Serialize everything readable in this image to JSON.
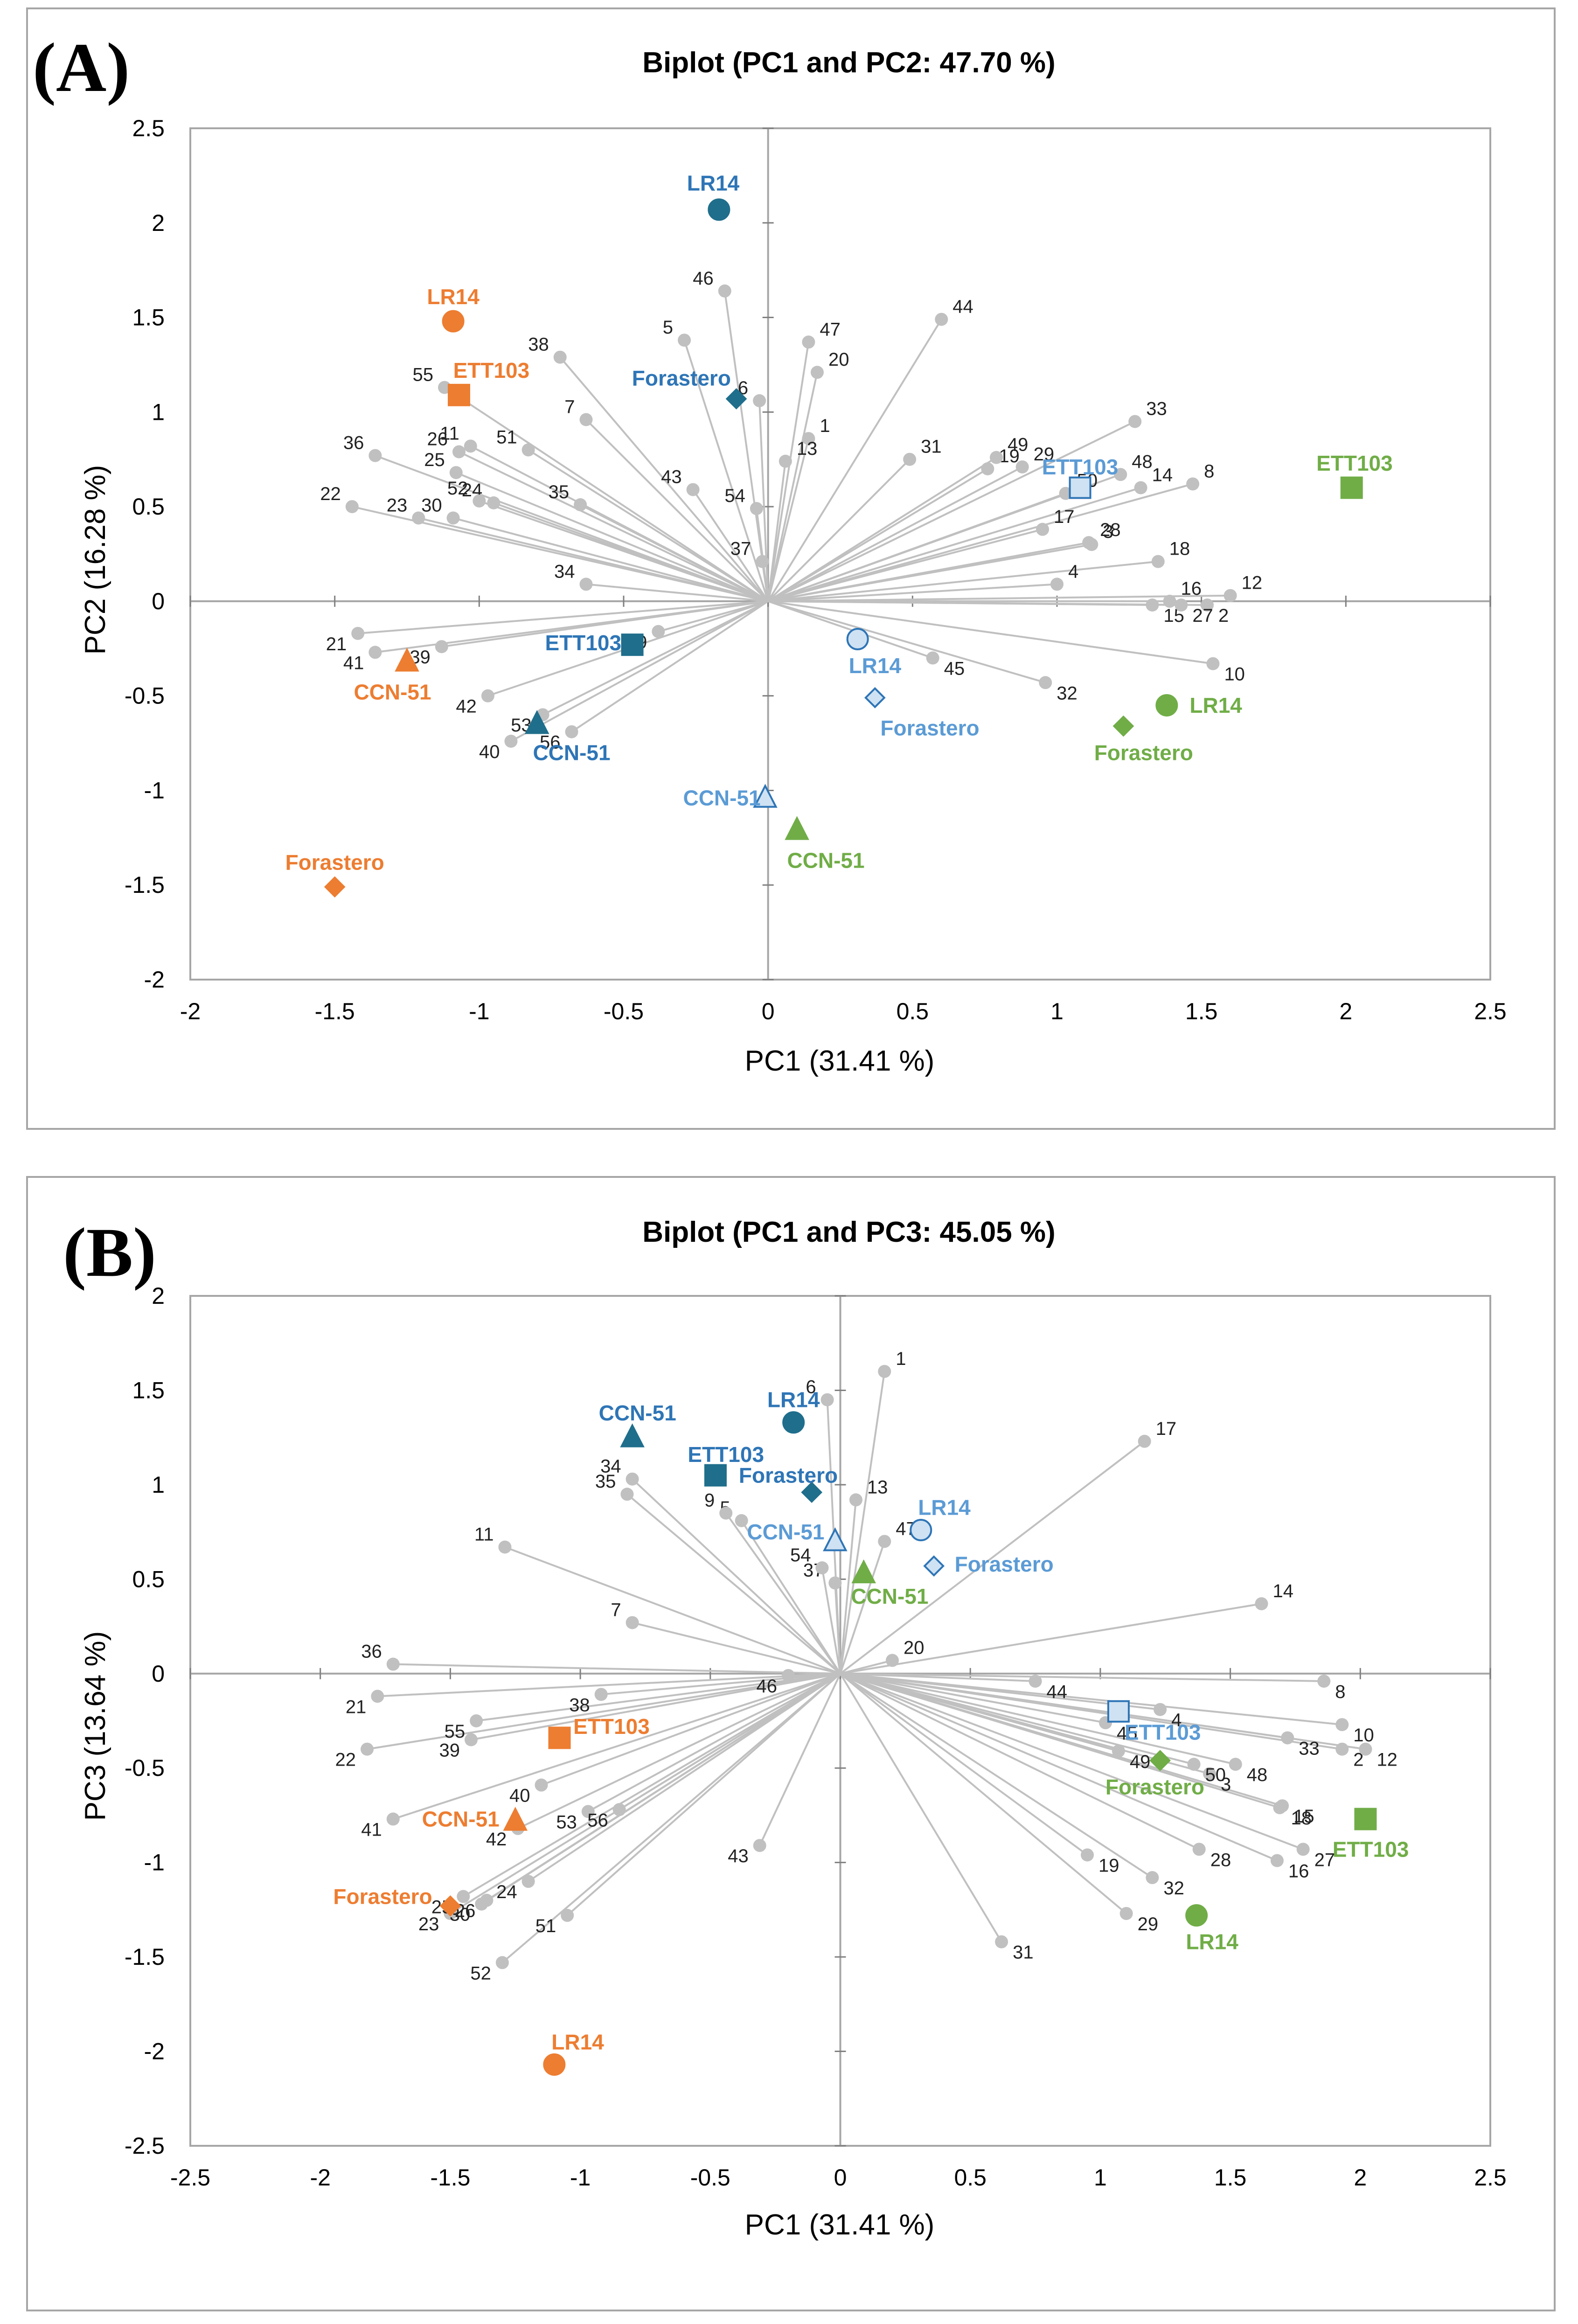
{
  "chart_data": [
    {
      "type": "scatter",
      "panel_label": "(A)",
      "title": "Biplot (PC1 and PC2: 47.70 %)",
      "xlabel": "PC1 (31.41 %)",
      "ylabel": "PC2 (16.28 %)",
      "xlim": [
        -2,
        2.5
      ],
      "ylim": [
        -2,
        2.5
      ],
      "xticks": [
        "-2",
        "-1.5",
        "-1",
        "-0.5",
        "0",
        "0.5",
        "1",
        "1.5",
        "2",
        "2.5"
      ],
      "yticks": [
        "-2",
        "-1.5",
        "-1",
        "-0.5",
        "0",
        "0.5",
        "1",
        "1.5",
        "2",
        "2.5"
      ],
      "colors": {
        "orange": "#ED7D31",
        "darkblue": "#2E75B6",
        "teal": "#1F6E8C",
        "lightblue": "#5B9BD5",
        "lightfill": "#CFE2F3",
        "green": "#70AD47",
        "vector": "#C0C0C0",
        "axis": "#A6A6A6"
      },
      "variables": [
        {
          "label": "1",
          "x": 0.14,
          "y": 0.86
        },
        {
          "label": "2",
          "x": 1.52,
          "y": -0.02
        },
        {
          "label": "3",
          "x": 1.12,
          "y": 0.3
        },
        {
          "label": "4",
          "x": 1.0,
          "y": 0.09
        },
        {
          "label": "5",
          "x": -0.29,
          "y": 1.38
        },
        {
          "label": "6",
          "x": -0.03,
          "y": 1.06
        },
        {
          "label": "7",
          "x": -0.63,
          "y": 0.96
        },
        {
          "label": "8",
          "x": 1.47,
          "y": 0.62
        },
        {
          "label": "9",
          "x": -0.38,
          "y": -0.16
        },
        {
          "label": "10",
          "x": 1.54,
          "y": -0.33
        },
        {
          "label": "11",
          "x": -1.03,
          "y": 0.82
        },
        {
          "label": "12",
          "x": 1.6,
          "y": 0.03
        },
        {
          "label": "13",
          "x": 0.06,
          "y": 0.74
        },
        {
          "label": "14",
          "x": 1.29,
          "y": 0.6
        },
        {
          "label": "15",
          "x": 1.33,
          "y": -0.02
        },
        {
          "label": "16",
          "x": 1.39,
          "y": 0.0
        },
        {
          "label": "17",
          "x": 0.95,
          "y": 0.38
        },
        {
          "label": "18",
          "x": 1.35,
          "y": 0.21
        },
        {
          "label": "19",
          "x": 0.76,
          "y": 0.7
        },
        {
          "label": "20",
          "x": 0.17,
          "y": 1.21
        },
        {
          "label": "21",
          "x": -1.42,
          "y": -0.17
        },
        {
          "label": "22",
          "x": -1.44,
          "y": 0.5
        },
        {
          "label": "23",
          "x": -1.21,
          "y": 0.44
        },
        {
          "label": "24",
          "x": -0.95,
          "y": 0.52
        },
        {
          "label": "25",
          "x": -1.08,
          "y": 0.68
        },
        {
          "label": "26",
          "x": -1.07,
          "y": 0.79
        },
        {
          "label": "27",
          "x": 1.43,
          "y": -0.02
        },
        {
          "label": "28",
          "x": 1.11,
          "y": 0.31
        },
        {
          "label": "29",
          "x": 0.88,
          "y": 0.71
        },
        {
          "label": "30",
          "x": -1.09,
          "y": 0.44
        },
        {
          "label": "31",
          "x": 0.49,
          "y": 0.75
        },
        {
          "label": "32",
          "x": 0.96,
          "y": -0.43
        },
        {
          "label": "33",
          "x": 1.27,
          "y": 0.95
        },
        {
          "label": "34",
          "x": -0.63,
          "y": 0.09
        },
        {
          "label": "35",
          "x": -0.65,
          "y": 0.51
        },
        {
          "label": "36",
          "x": -1.36,
          "y": 0.77
        },
        {
          "label": "37",
          "x": -0.02,
          "y": 0.21
        },
        {
          "label": "38",
          "x": -0.72,
          "y": 1.29
        },
        {
          "label": "39",
          "x": -1.13,
          "y": -0.24
        },
        {
          "label": "40",
          "x": -0.89,
          "y": -0.74
        },
        {
          "label": "41",
          "x": -1.36,
          "y": -0.27
        },
        {
          "label": "42",
          "x": -0.97,
          "y": -0.5
        },
        {
          "label": "43",
          "x": -0.26,
          "y": 0.59
        },
        {
          "label": "44",
          "x": 0.6,
          "y": 1.49
        },
        {
          "label": "45",
          "x": 0.57,
          "y": -0.3
        },
        {
          "label": "46",
          "x": -0.15,
          "y": 1.64
        },
        {
          "label": "47",
          "x": 0.14,
          "y": 1.37
        },
        {
          "label": "48",
          "x": 1.22,
          "y": 0.67
        },
        {
          "label": "49",
          "x": 0.79,
          "y": 0.76
        },
        {
          "label": "50",
          "x": 1.03,
          "y": 0.57
        },
        {
          "label": "51",
          "x": -0.83,
          "y": 0.8
        },
        {
          "label": "52",
          "x": -1.0,
          "y": 0.53
        },
        {
          "label": "53",
          "x": -0.78,
          "y": -0.6
        },
        {
          "label": "54",
          "x": -0.04,
          "y": 0.49
        },
        {
          "label": "55",
          "x": -1.12,
          "y": 1.13
        },
        {
          "label": "56",
          "x": -0.68,
          "y": -0.69
        }
      ],
      "samples": [
        {
          "group": "orange",
          "label": "LR14",
          "shape": "circle",
          "x": -1.09,
          "y": 1.48,
          "lx": -1.09,
          "ly": 1.61,
          "anchor": "middle"
        },
        {
          "group": "orange",
          "label": "ETT103",
          "shape": "square",
          "x": -1.07,
          "y": 1.09,
          "lx": -1.09,
          "ly": 1.22,
          "anchor": "start"
        },
        {
          "group": "orange",
          "label": "CCN-51",
          "shape": "triangle",
          "x": -1.25,
          "y": -0.32,
          "lx": -1.3,
          "ly": -0.48,
          "anchor": "middle"
        },
        {
          "group": "orange",
          "label": "Forastero",
          "shape": "diamond",
          "x": -1.5,
          "y": -1.51,
          "lx": -1.5,
          "ly": -1.38,
          "anchor": "middle"
        },
        {
          "group": "darkblue",
          "label": "LR14",
          "shape": "circle",
          "x": -0.17,
          "y": 2.07,
          "lx": -0.19,
          "ly": 2.21,
          "anchor": "middle"
        },
        {
          "group": "darkblue",
          "label": "Forastero",
          "shape": "diamond",
          "x": -0.11,
          "y": 1.07,
          "lx": -0.3,
          "ly": 1.18,
          "anchor": "middle"
        },
        {
          "group": "darkblue",
          "label": "ETT103",
          "shape": "square",
          "x": -0.47,
          "y": -0.23,
          "lx": -0.64,
          "ly": -0.22,
          "anchor": "middle"
        },
        {
          "group": "darkblue",
          "label": "CCN-51",
          "shape": "triangle",
          "x": -0.8,
          "y": -0.65,
          "lx": -0.68,
          "ly": -0.8,
          "anchor": "middle"
        },
        {
          "group": "lightblue",
          "label": "LR14",
          "shape": "circle",
          "x": 0.31,
          "y": -0.2,
          "lx": 0.37,
          "ly": -0.34,
          "anchor": "middle"
        },
        {
          "group": "lightblue",
          "label": "Forastero",
          "shape": "diamond",
          "x": 0.37,
          "y": -0.51,
          "lx": 0.56,
          "ly": -0.67,
          "anchor": "middle"
        },
        {
          "group": "lightblue",
          "label": "CCN-51",
          "shape": "triangle",
          "x": -0.01,
          "y": -1.04,
          "lx": -0.16,
          "ly": -1.04,
          "anchor": "middle"
        },
        {
          "group": "lightblue",
          "label": "ETT103",
          "shape": "square",
          "x": 1.08,
          "y": 0.6,
          "lx": 1.08,
          "ly": 0.71,
          "anchor": "middle"
        },
        {
          "group": "green",
          "label": "ETT103",
          "shape": "square",
          "x": 2.02,
          "y": 0.6,
          "lx": 2.03,
          "ly": 0.73,
          "anchor": "middle"
        },
        {
          "group": "green",
          "label": "LR14",
          "shape": "circle",
          "x": 1.38,
          "y": -0.55,
          "lx": 1.55,
          "ly": -0.55,
          "anchor": "middle"
        },
        {
          "group": "green",
          "label": "Forastero",
          "shape": "diamond",
          "x": 1.23,
          "y": -0.66,
          "lx": 1.3,
          "ly": -0.8,
          "anchor": "middle"
        },
        {
          "group": "green",
          "label": "CCN-51",
          "shape": "triangle",
          "x": 0.1,
          "y": -1.21,
          "lx": 0.2,
          "ly": -1.37,
          "anchor": "middle"
        }
      ]
    },
    {
      "type": "scatter",
      "panel_label": "(B)",
      "title": "Biplot (PC1 and PC3: 45.05 %)",
      "xlabel": "PC1 (31.41 %)",
      "ylabel": "PC3 (13.64 %)",
      "xlim": [
        -2.5,
        2.5
      ],
      "ylim": [
        -2.5,
        2
      ],
      "xticks": [
        "-2.5",
        "-2",
        "-1.5",
        "-1",
        "-0.5",
        "0",
        "0.5",
        "1",
        "1.5",
        "2",
        "2.5"
      ],
      "yticks": [
        "-2.5",
        "-2",
        "-1.5",
        "-1",
        "-0.5",
        "0",
        "0.5",
        "1",
        "1.5",
        "2"
      ],
      "colors": {
        "orange": "#ED7D31",
        "darkblue": "#2E75B6",
        "teal": "#1F6E8C",
        "lightblue": "#5B9BD5",
        "lightfill": "#CFE2F3",
        "green": "#70AD47",
        "vector": "#C0C0C0",
        "axis": "#A6A6A6"
      },
      "variables": [
        {
          "label": "1",
          "x": 0.17,
          "y": 1.6
        },
        {
          "label": "2",
          "x": 1.93,
          "y": -0.4
        },
        {
          "label": "3",
          "x": 1.42,
          "y": -0.53
        },
        {
          "label": "4",
          "x": 1.23,
          "y": -0.19
        },
        {
          "label": "5",
          "x": -0.38,
          "y": 0.81
        },
        {
          "label": "6",
          "x": -0.05,
          "y": 1.45
        },
        {
          "label": "7",
          "x": -0.8,
          "y": 0.27
        },
        {
          "label": "8",
          "x": 1.86,
          "y": -0.04
        },
        {
          "label": "9",
          "x": -0.44,
          "y": 0.85
        },
        {
          "label": "10",
          "x": 1.93,
          "y": -0.27
        },
        {
          "label": "11",
          "x": -1.29,
          "y": 0.67
        },
        {
          "label": "12",
          "x": 2.02,
          "y": -0.4
        },
        {
          "label": "13",
          "x": 0.06,
          "y": 0.92
        },
        {
          "label": "14",
          "x": 1.62,
          "y": 0.37
        },
        {
          "label": "15",
          "x": 1.7,
          "y": -0.7
        },
        {
          "label": "16",
          "x": 1.68,
          "y": -0.99
        },
        {
          "label": "17",
          "x": 1.17,
          "y": 1.23
        },
        {
          "label": "18",
          "x": 1.69,
          "y": -0.71
        },
        {
          "label": "19",
          "x": 0.95,
          "y": -0.96
        },
        {
          "label": "20",
          "x": 0.2,
          "y": 0.07
        },
        {
          "label": "21",
          "x": -1.78,
          "y": -0.12
        },
        {
          "label": "22",
          "x": -1.82,
          "y": -0.4
        },
        {
          "label": "23",
          "x": -1.5,
          "y": -1.27
        },
        {
          "label": "24",
          "x": -1.2,
          "y": -1.1
        },
        {
          "label": "25",
          "x": -1.45,
          "y": -1.18
        },
        {
          "label": "26",
          "x": -1.36,
          "y": -1.2
        },
        {
          "label": "27",
          "x": 1.78,
          "y": -0.93
        },
        {
          "label": "28",
          "x": 1.38,
          "y": -0.93
        },
        {
          "label": "29",
          "x": 1.1,
          "y": -1.27
        },
        {
          "label": "30",
          "x": -1.38,
          "y": -1.22
        },
        {
          "label": "31",
          "x": 0.62,
          "y": -1.42
        },
        {
          "label": "32",
          "x": 1.2,
          "y": -1.08
        },
        {
          "label": "33",
          "x": 1.72,
          "y": -0.34
        },
        {
          "label": "34",
          "x": -0.8,
          "y": 1.03
        },
        {
          "label": "35",
          "x": -0.82,
          "y": 0.95
        },
        {
          "label": "36",
          "x": -1.72,
          "y": 0.05
        },
        {
          "label": "37",
          "x": -0.02,
          "y": 0.48
        },
        {
          "label": "38",
          "x": -0.92,
          "y": -0.11
        },
        {
          "label": "39",
          "x": -1.42,
          "y": -0.35
        },
        {
          "label": "40",
          "x": -1.15,
          "y": -0.59
        },
        {
          "label": "41",
          "x": -1.72,
          "y": -0.77
        },
        {
          "label": "42",
          "x": -1.24,
          "y": -0.82
        },
        {
          "label": "43",
          "x": -0.31,
          "y": -0.91
        },
        {
          "label": "44",
          "x": 0.75,
          "y": -0.04
        },
        {
          "label": "45",
          "x": 1.02,
          "y": -0.26
        },
        {
          "label": "46",
          "x": -0.2,
          "y": -0.01
        },
        {
          "label": "47",
          "x": 0.17,
          "y": 0.7
        },
        {
          "label": "48",
          "x": 1.52,
          "y": -0.48
        },
        {
          "label": "49",
          "x": 1.07,
          "y": -0.41
        },
        {
          "label": "50",
          "x": 1.36,
          "y": -0.48
        },
        {
          "label": "51",
          "x": -1.05,
          "y": -1.28
        },
        {
          "label": "52",
          "x": -1.3,
          "y": -1.53
        },
        {
          "label": "53",
          "x": -0.97,
          "y": -0.73
        },
        {
          "label": "54",
          "x": -0.07,
          "y": 0.56
        },
        {
          "label": "55",
          "x": -1.4,
          "y": -0.25
        },
        {
          "label": "56",
          "x": -0.85,
          "y": -0.72
        }
      ],
      "samples": [
        {
          "group": "darkblue",
          "label": "CCN-51",
          "shape": "triangle",
          "x": -0.8,
          "y": 1.25,
          "lx": -0.78,
          "ly": 1.38,
          "anchor": "middle"
        },
        {
          "group": "darkblue",
          "label": "LR14",
          "shape": "circle",
          "x": -0.18,
          "y": 1.33,
          "lx": -0.18,
          "ly": 1.45,
          "anchor": "middle"
        },
        {
          "group": "darkblue",
          "label": "ETT103",
          "shape": "square",
          "x": -0.48,
          "y": 1.05,
          "lx": -0.44,
          "ly": 1.16,
          "anchor": "middle"
        },
        {
          "group": "darkblue",
          "label": "Forastero",
          "shape": "diamond",
          "x": -0.11,
          "y": 0.96,
          "lx": -0.2,
          "ly": 1.05,
          "anchor": "middle"
        },
        {
          "group": "lightblue",
          "label": "LR14",
          "shape": "circle",
          "x": 0.31,
          "y": 0.76,
          "lx": 0.4,
          "ly": 0.88,
          "anchor": "middle"
        },
        {
          "group": "lightblue",
          "label": "CCN-51",
          "shape": "triangle",
          "x": -0.02,
          "y": 0.7,
          "lx": -0.21,
          "ly": 0.75,
          "anchor": "middle"
        },
        {
          "group": "lightblue",
          "label": "Forastero",
          "shape": "diamond",
          "x": 0.36,
          "y": 0.57,
          "lx": 0.63,
          "ly": 0.58,
          "anchor": "middle"
        },
        {
          "group": "lightblue",
          "label": "ETT103",
          "shape": "square",
          "x": 1.07,
          "y": -0.2,
          "lx": 1.24,
          "ly": -0.31,
          "anchor": "middle"
        },
        {
          "group": "green",
          "label": "CCN-51",
          "shape": "triangle",
          "x": 0.09,
          "y": 0.53,
          "lx": 0.19,
          "ly": 0.41,
          "anchor": "middle"
        },
        {
          "group": "green",
          "label": "Forastero",
          "shape": "diamond",
          "x": 1.23,
          "y": -0.46,
          "lx": 1.21,
          "ly": -0.6,
          "anchor": "middle"
        },
        {
          "group": "green",
          "label": "ETT103",
          "shape": "square",
          "x": 2.02,
          "y": -0.77,
          "lx": 2.04,
          "ly": -0.93,
          "anchor": "middle"
        },
        {
          "group": "green",
          "label": "LR14",
          "shape": "circle",
          "x": 1.37,
          "y": -1.28,
          "lx": 1.43,
          "ly": -1.42,
          "anchor": "middle"
        },
        {
          "group": "orange",
          "label": "ETT103",
          "shape": "square",
          "x": -1.08,
          "y": -0.34,
          "lx": -0.88,
          "ly": -0.28,
          "anchor": "middle"
        },
        {
          "group": "orange",
          "label": "CCN-51",
          "shape": "triangle",
          "x": -1.25,
          "y": -0.78,
          "lx": -1.46,
          "ly": -0.77,
          "anchor": "middle"
        },
        {
          "group": "orange",
          "label": "Forastero",
          "shape": "diamond",
          "x": -1.5,
          "y": -1.23,
          "lx": -1.76,
          "ly": -1.18,
          "anchor": "middle"
        },
        {
          "group": "orange",
          "label": "LR14",
          "shape": "circle",
          "x": -1.1,
          "y": -2.07,
          "lx": -1.01,
          "ly": -1.95,
          "anchor": "middle"
        }
      ]
    }
  ]
}
